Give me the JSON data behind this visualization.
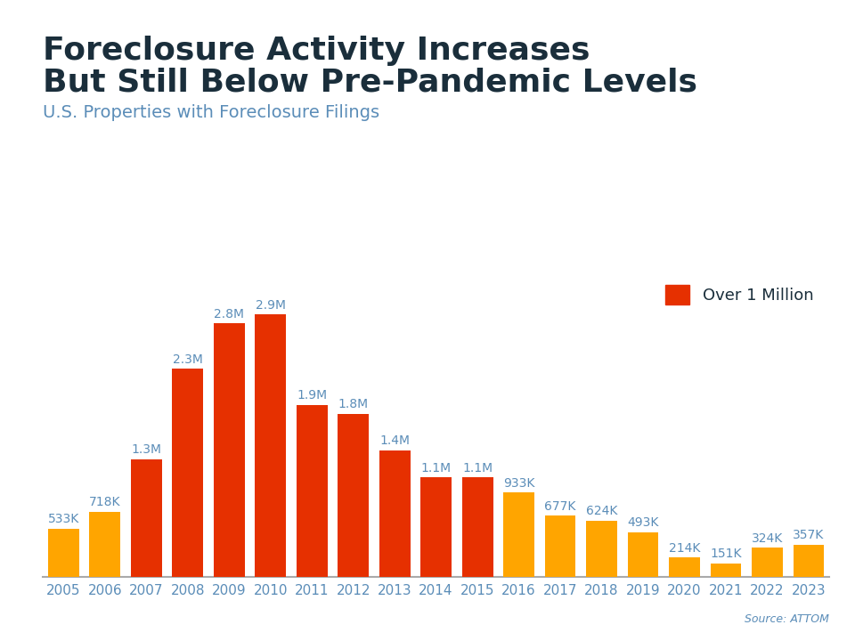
{
  "title_line1": "Foreclosure Activity Increases",
  "title_line2": "But Still Below Pre-Pandemic Levels",
  "subtitle": "U.S. Properties with Foreclosure Filings",
  "source": "Source: ATTOM",
  "years": [
    2005,
    2006,
    2007,
    2008,
    2009,
    2010,
    2011,
    2012,
    2013,
    2014,
    2015,
    2016,
    2017,
    2018,
    2019,
    2020,
    2021,
    2022,
    2023
  ],
  "values": [
    533000,
    718000,
    1300000,
    2300000,
    2800000,
    2900000,
    1900000,
    1800000,
    1400000,
    1100000,
    1100000,
    933000,
    677000,
    624000,
    493000,
    214000,
    151000,
    324000,
    357000
  ],
  "labels": [
    "533K",
    "718K",
    "1.3M",
    "2.3M",
    "2.8M",
    "2.9M",
    "1.9M",
    "1.8M",
    "1.4M",
    "1.1M",
    "1.1M",
    "933K",
    "677K",
    "624K",
    "493K",
    "214K",
    "151K",
    "324K",
    "357K"
  ],
  "color_over_million": "#e63000",
  "color_under_million": "#ffa500",
  "threshold": 1000000,
  "legend_label": "Over 1 Million",
  "title_color": "#1a2e3b",
  "subtitle_color": "#5b8db8",
  "label_color": "#5b8db8",
  "axis_label_color": "#5b8db8",
  "cyan_bar_color": "#00b0d8",
  "background_color": "#ffffff",
  "title_fontsize": 26,
  "subtitle_fontsize": 14,
  "label_fontsize": 10,
  "source_fontsize": 9,
  "axis_fontsize": 11
}
